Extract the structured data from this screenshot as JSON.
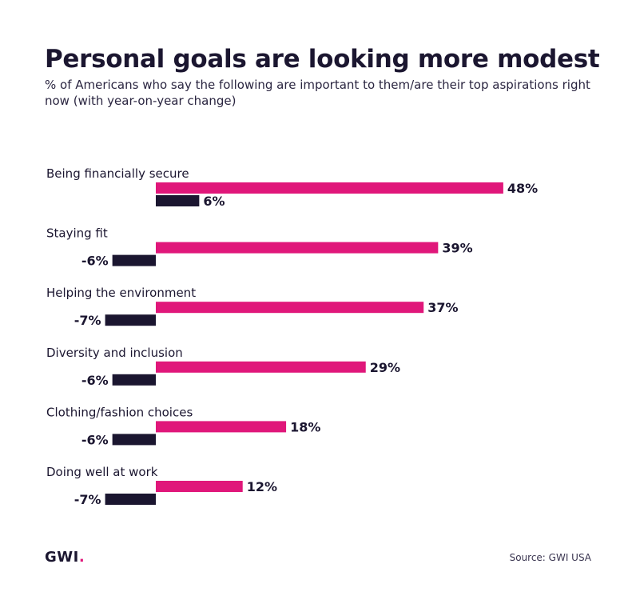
{
  "title": "Personal goals are looking more modest",
  "subtitle": "% of Americans who say the following are important to them/are their top aspirations right now (with year-on-year change)",
  "footer": {
    "logo_text": "GWI",
    "logo_dot": ".",
    "source": "Source: GWI USA"
  },
  "colors": {
    "primary_bar": "#e0177a",
    "change_bar": "#1b1630",
    "text": "#1b1630"
  },
  "chart_data": {
    "type": "bar",
    "orientation": "horizontal",
    "categories": [
      "Being financially secure",
      "Staying fit",
      "Helping the environment",
      "Diversity and inclusion",
      "Clothing/fashion choices",
      "Doing well at work"
    ],
    "series": [
      {
        "values": [
          48,
          39,
          37,
          29,
          18,
          12
        ],
        "labels": [
          "48%",
          "39%",
          "37%",
          "29%",
          "18%",
          "12%"
        ]
      },
      {
        "values": [
          6,
          -6,
          -7,
          -6,
          -6,
          -7
        ],
        "labels": [
          "6%",
          "-6%",
          "-7%",
          "-6%",
          "-6%",
          "-7%"
        ]
      }
    ],
    "grid": false,
    "legend": "none"
  }
}
